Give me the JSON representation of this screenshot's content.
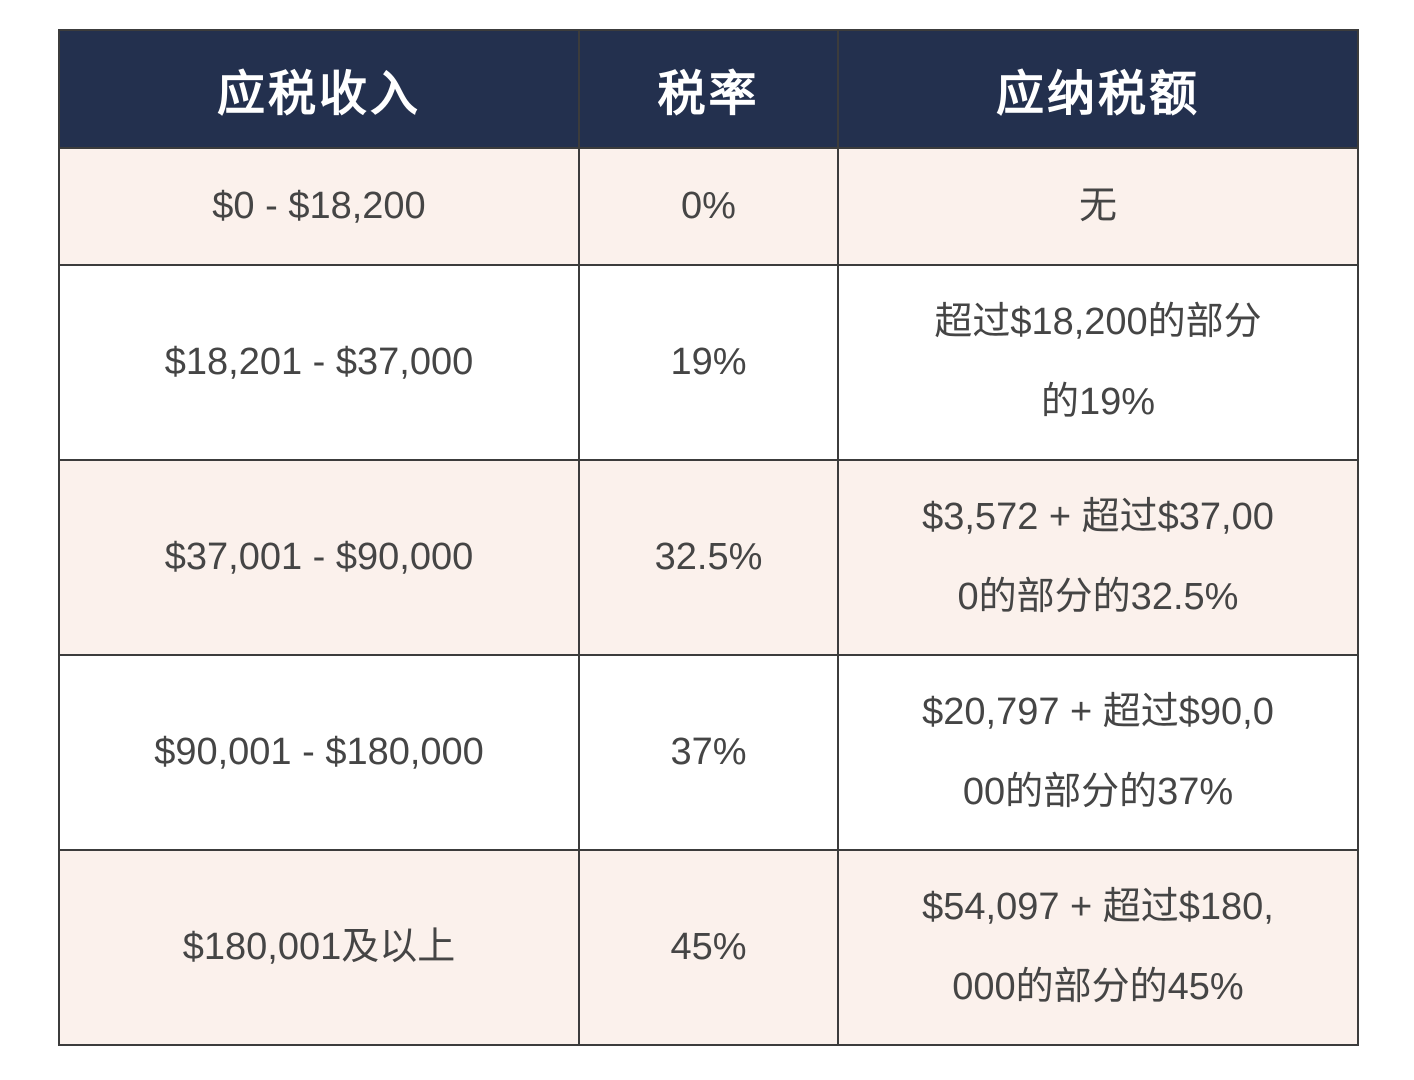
{
  "table": {
    "headers": {
      "income": "应税收入",
      "rate": "税率",
      "tax": "应纳税额"
    },
    "rows": [
      {
        "income": "$0 - $18,200",
        "rate": "0%",
        "tax": "无"
      },
      {
        "income": "$18,201 - $37,000",
        "rate": "19%",
        "tax": "超过$18,200的部分\n的19%"
      },
      {
        "income": "$37,001 - $90,000",
        "rate": "32.5%",
        "tax": "$3,572 + 超过$37,00\n0的部分的32.5%"
      },
      {
        "income": "$90,001 - $180,000",
        "rate": "37%",
        "tax": "$20,797 + 超过$90,0\n00的部分的37%"
      },
      {
        "income": "$180,001及以上",
        "rate": "45%",
        "tax": "$54,097 + 超过$180,\n000的部分的45%"
      }
    ],
    "colors": {
      "header_bg": "#23304e",
      "header_text": "#ffffff",
      "row_pink": "#fbf1ec",
      "row_white": "#ffffff",
      "border": "#3c3c3c",
      "body_text": "#454545"
    }
  },
  "chart_data": {
    "type": "table",
    "title": "",
    "columns": [
      "应税收入",
      "税率",
      "应纳税额"
    ],
    "rows": [
      [
        "$0 - $18,200",
        "0%",
        "无"
      ],
      [
        "$18,201 - $37,000",
        "19%",
        "超过$18,200的部分的19%"
      ],
      [
        "$37,001 - $90,000",
        "32.5%",
        "$3,572 + 超过$37,000的部分的32.5%"
      ],
      [
        "$90,001 - $180,000",
        "37%",
        "$20,797 + 超过$90,000的部分的37%"
      ],
      [
        "$180,001及以上",
        "45%",
        "$54,097 + 超过$180,000的部分的45%"
      ]
    ],
    "rates_numeric_percent": [
      0,
      19,
      32.5,
      37,
      45
    ],
    "layout": {
      "zebra_rows": "odd rows pink",
      "header_style": "dark navy, white bold text"
    }
  }
}
